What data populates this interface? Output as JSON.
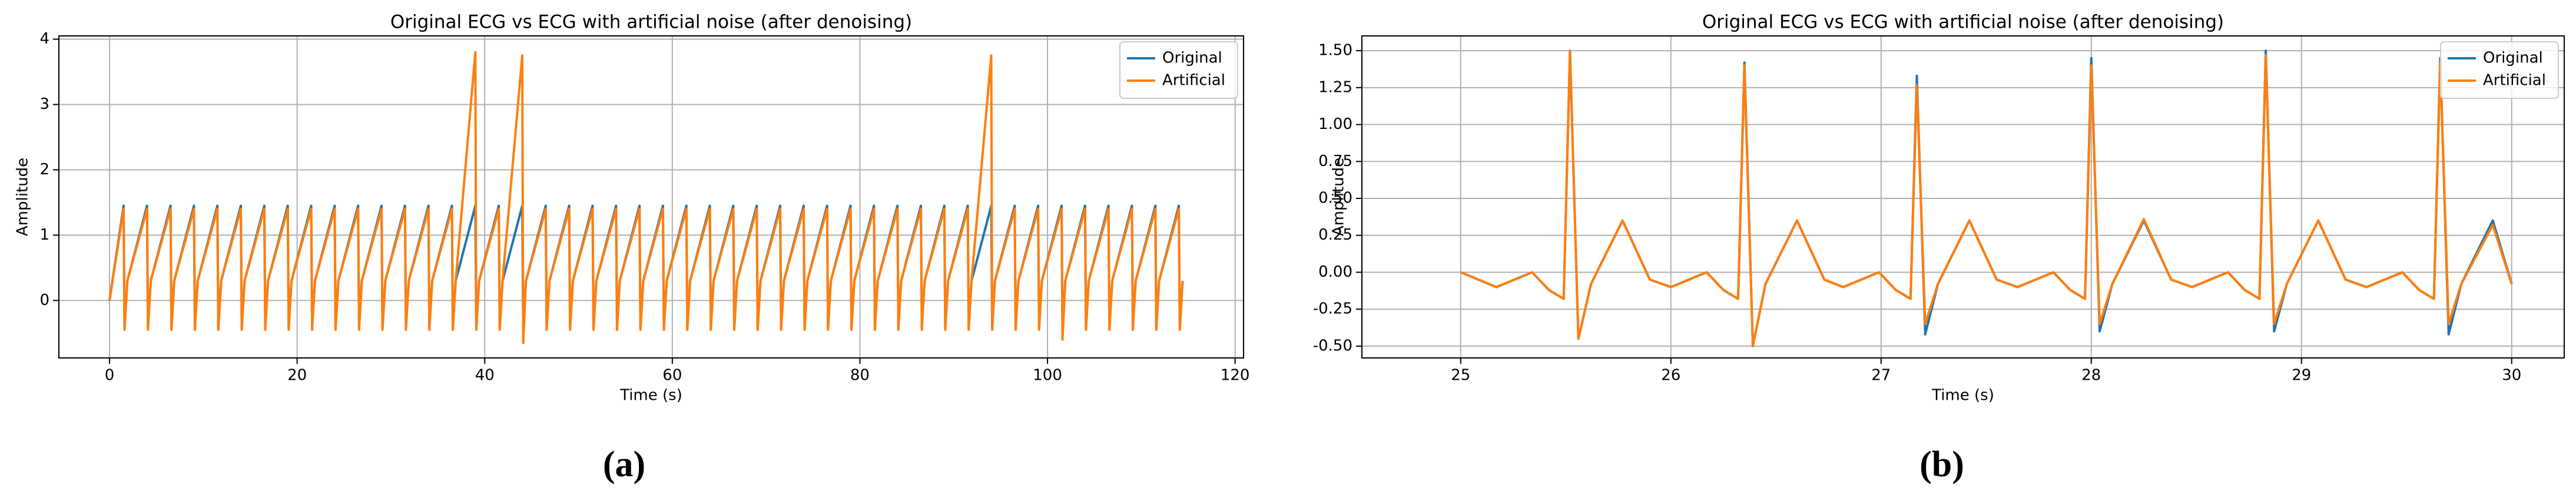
{
  "chart_data": [
    {
      "type": "line",
      "title": "Original ECG vs ECG with artificial noise (after denoising)",
      "xlabel": "Time (s)",
      "ylabel": "Amplitude",
      "xlim": [
        -5.4,
        120.9
      ],
      "xticks": [
        0,
        20,
        40,
        60,
        80,
        100,
        120
      ],
      "ylim": [
        -0.88,
        4.05
      ],
      "yticks": [
        0,
        1,
        2,
        3,
        4
      ],
      "grid": true,
      "legend": "upper right",
      "x": [
        0,
        1.5,
        1.6,
        1.9,
        4,
        4.1,
        4.4,
        6.5,
        6.6,
        6.9,
        9,
        9.1,
        9.4,
        11.5,
        11.6,
        11.9,
        14,
        14.1,
        14.4,
        16.5,
        16.6,
        16.9,
        19,
        19.1,
        19.4,
        21.5,
        21.6,
        21.9,
        24,
        24.1,
        24.4,
        26.5,
        26.6,
        26.9,
        29,
        29.1,
        29.4,
        31.5,
        31.6,
        31.9,
        34,
        34.1,
        34.4,
        36.5,
        36.6,
        36.9,
        39,
        39.1,
        39.4,
        41.5,
        41.6,
        41.9,
        44,
        44.1,
        44.4,
        46.5,
        46.6,
        46.9,
        49,
        49.1,
        49.4,
        51.5,
        51.6,
        51.9,
        54,
        54.1,
        54.4,
        56.5,
        56.6,
        56.9,
        59,
        59.1,
        59.4,
        61.5,
        61.6,
        61.9,
        64,
        64.1,
        64.4,
        66.5,
        66.6,
        66.9,
        69,
        69.1,
        69.4,
        71.5,
        71.6,
        71.9,
        74,
        74.1,
        74.4,
        76.5,
        76.6,
        76.9,
        79,
        79.1,
        79.4,
        81.5,
        81.6,
        81.9,
        84,
        84.1,
        84.4,
        86.5,
        86.6,
        86.9,
        89,
        89.1,
        89.4,
        91.5,
        91.6,
        91.9,
        94,
        94.1,
        94.4,
        96.5,
        96.6,
        96.9,
        99,
        99.1,
        99.4,
        101.5,
        101.6,
        101.9,
        104,
        104.1,
        104.4,
        106.5,
        106.6,
        106.9,
        109,
        109.1,
        109.4,
        111.5,
        111.6,
        111.9,
        114,
        114.1,
        114.4
      ],
      "series": [
        {
          "name": "Original",
          "color": "#1f77b4",
          "values": [
            0,
            1.45,
            -0.4,
            0.3,
            1.45,
            -0.4,
            0.3,
            1.45,
            -0.4,
            0.3,
            1.45,
            -0.4,
            0.3,
            1.45,
            -0.4,
            0.3,
            1.45,
            -0.4,
            0.3,
            1.45,
            -0.4,
            0.3,
            1.45,
            -0.4,
            0.3,
            1.45,
            -0.4,
            0.3,
            1.45,
            -0.4,
            0.3,
            1.45,
            -0.4,
            0.3,
            1.45,
            -0.4,
            0.3,
            1.45,
            -0.4,
            0.3,
            1.45,
            -0.4,
            0.3,
            1.45,
            -0.4,
            0.3,
            1.45,
            -0.4,
            0.3,
            1.45,
            -0.4,
            0.3,
            1.45,
            -0.4,
            0.3,
            1.45,
            -0.4,
            0.3,
            1.45,
            -0.4,
            0.3,
            1.45,
            -0.4,
            0.3,
            1.45,
            -0.4,
            0.3,
            1.45,
            -0.4,
            0.3,
            1.45,
            -0.4,
            0.3,
            1.45,
            -0.4,
            0.3,
            1.45,
            -0.4,
            0.3,
            1.45,
            -0.4,
            0.3,
            1.45,
            -0.4,
            0.3,
            1.45,
            -0.4,
            0.3,
            1.45,
            -0.4,
            0.3,
            1.45,
            -0.4,
            0.3,
            1.45,
            -0.4,
            0.3,
            1.45,
            -0.4,
            0.3,
            1.45,
            -0.4,
            0.3,
            1.45,
            -0.4,
            0.3,
            1.45,
            -0.4,
            0.3,
            1.45,
            -0.4,
            0.3,
            1.45,
            -0.4,
            0.3,
            1.45,
            -0.4,
            0.3,
            1.45,
            -0.4,
            0.3,
            1.45,
            -0.4,
            0.3,
            1.45,
            -0.4,
            0.3,
            1.45,
            -0.4,
            0.3,
            1.45,
            -0.4,
            0.3,
            1.45,
            -0.4,
            0.3,
            1.45,
            -0.4,
            0.3
          ]
        },
        {
          "name": "Artificial",
          "color": "#ff7f0e",
          "values": [
            0,
            1.4,
            -0.45,
            0.3,
            1.4,
            -0.45,
            0.3,
            1.4,
            -0.45,
            0.3,
            1.4,
            -0.45,
            0.3,
            1.4,
            -0.45,
            0.3,
            1.4,
            -0.45,
            0.3,
            1.4,
            -0.45,
            0.3,
            1.4,
            -0.45,
            0.3,
            1.4,
            -0.45,
            0.3,
            1.4,
            -0.45,
            0.3,
            1.4,
            -0.45,
            0.3,
            1.4,
            -0.45,
            0.3,
            1.4,
            -0.45,
            0.3,
            1.4,
            -0.45,
            0.3,
            1.4,
            -0.45,
            0.3,
            3.8,
            -0.45,
            0.3,
            1.4,
            -0.45,
            0.3,
            3.75,
            -0.65,
            0.3,
            1.4,
            -0.45,
            0.3,
            1.4,
            -0.45,
            0.3,
            1.4,
            -0.45,
            0.3,
            1.4,
            -0.45,
            0.3,
            1.4,
            -0.45,
            0.3,
            1.4,
            -0.45,
            0.3,
            1.4,
            -0.45,
            0.3,
            1.4,
            -0.45,
            0.3,
            1.4,
            -0.45,
            0.3,
            1.4,
            -0.45,
            0.3,
            1.4,
            -0.45,
            0.3,
            1.4,
            -0.45,
            0.3,
            1.4,
            -0.45,
            0.3,
            1.4,
            -0.45,
            0.3,
            1.4,
            -0.45,
            0.3,
            1.4,
            -0.45,
            0.3,
            1.4,
            -0.45,
            0.3,
            1.4,
            -0.45,
            0.3,
            1.4,
            -0.45,
            0.3,
            3.75,
            -0.45,
            0.3,
            1.4,
            -0.45,
            0.3,
            1.4,
            -0.45,
            0.3,
            1.4,
            -0.6,
            0.3,
            1.4,
            -0.45,
            0.3,
            1.4,
            -0.45,
            0.3,
            1.4,
            -0.45,
            0.3,
            1.4,
            -0.45,
            0.3,
            1.4,
            -0.45,
            0.3
          ]
        }
      ]
    },
    {
      "type": "line",
      "title": "Original ECG vs ECG with artificial noise (after denoising)",
      "xlabel": "Time (s)",
      "ylabel": "Amplitude",
      "xlim": [
        24.53,
        30.25
      ],
      "xticks": [
        25,
        26,
        27,
        28,
        29,
        30
      ],
      "ylim": [
        -0.58,
        1.6
      ],
      "yticks": [
        {
          "value": -0.5,
          "label": "-0.50"
        },
        {
          "value": -0.25,
          "label": "-0.25"
        },
        {
          "value": 0,
          "label": "0.00"
        },
        {
          "value": 0.25,
          "label": "0.25"
        },
        {
          "value": 0.5,
          "label": "0.50"
        },
        {
          "value": 0.75,
          "label": "0.75"
        },
        {
          "value": 1,
          "label": "1.00"
        },
        {
          "value": 1.25,
          "label": "1.25"
        },
        {
          "value": 1.5,
          "label": "1.50"
        }
      ],
      "grid": true,
      "legend": "upper right",
      "x": [
        25,
        25.17,
        25.34,
        25.42,
        25.49,
        25.52,
        25.56,
        25.62,
        25.77,
        25.9,
        26.0,
        26.17,
        26.25,
        26.32,
        26.35,
        26.39,
        26.45,
        26.6,
        26.73,
        26.82,
        26.99,
        27.07,
        27.14,
        27.17,
        27.21,
        27.27,
        27.42,
        27.55,
        27.65,
        27.82,
        27.9,
        27.97,
        28.0,
        28.04,
        28.1,
        28.25,
        28.38,
        28.48,
        28.65,
        28.73,
        28.8,
        28.83,
        28.87,
        28.93,
        29.08,
        29.21,
        29.31,
        29.48,
        29.56,
        29.63,
        29.66,
        29.7,
        29.76,
        29.91,
        30
      ],
      "series": [
        {
          "name": "Original",
          "color": "#1f77b4",
          "values": [
            0,
            -0.1,
            0.0,
            -0.12,
            -0.18,
            1.5,
            -0.45,
            -0.08,
            0.35,
            -0.05,
            -0.1,
            0.0,
            -0.12,
            -0.18,
            1.42,
            -0.5,
            -0.08,
            0.35,
            -0.05,
            -0.1,
            0.0,
            -0.12,
            -0.18,
            1.33,
            -0.42,
            -0.08,
            0.35,
            -0.05,
            -0.1,
            0.0,
            -0.12,
            -0.18,
            1.45,
            -0.4,
            -0.08,
            0.35,
            -0.05,
            -0.1,
            0.0,
            -0.12,
            -0.18,
            1.5,
            -0.4,
            -0.08,
            0.35,
            -0.05,
            -0.1,
            0.0,
            -0.12,
            -0.18,
            1.45,
            -0.42,
            -0.08,
            0.35,
            -0.08
          ]
        },
        {
          "name": "Artificial",
          "color": "#ff7f0e",
          "values": [
            0,
            -0.1,
            0.0,
            -0.12,
            -0.18,
            1.5,
            -0.45,
            -0.08,
            0.35,
            -0.05,
            -0.1,
            0.0,
            -0.12,
            -0.18,
            1.4,
            -0.5,
            -0.08,
            0.35,
            -0.05,
            -0.1,
            0.0,
            -0.12,
            -0.18,
            1.27,
            -0.35,
            -0.08,
            0.35,
            -0.05,
            -0.1,
            0.0,
            -0.12,
            -0.18,
            1.4,
            -0.35,
            -0.08,
            0.36,
            -0.05,
            -0.1,
            0.0,
            -0.12,
            -0.18,
            1.47,
            -0.35,
            -0.08,
            0.35,
            -0.05,
            -0.1,
            0.0,
            -0.12,
            -0.18,
            1.42,
            -0.35,
            -0.08,
            0.32,
            -0.08
          ]
        }
      ]
    }
  ],
  "captions": [
    "(a)",
    "(b)"
  ]
}
